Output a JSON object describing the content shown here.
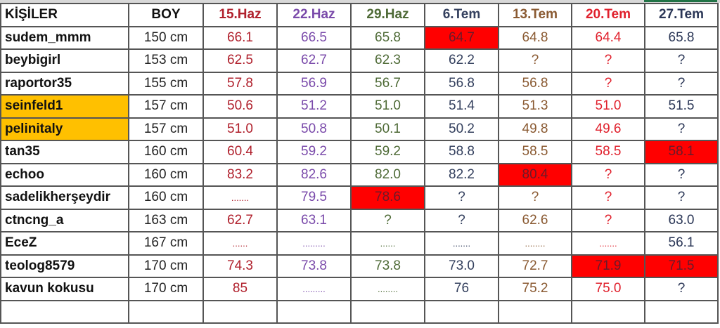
{
  "headers": [
    "KİŞİLER",
    "BOY",
    "15.Haz",
    "22.Haz",
    "29.Haz",
    "6.Tem",
    "13.Tem",
    "20.Tem",
    "27.Tem"
  ],
  "column_colors": [
    "#111111",
    "#111111",
    "#b0202c",
    "#7a4aaa",
    "#4e6a36",
    "#34405e",
    "#8a5a32",
    "#e0202c",
    "#2a3656"
  ],
  "highlight_color": "#ff0000",
  "name_highlight_color": "#ffc000",
  "rows": [
    {
      "name": "sudem_mmm",
      "boy": "150 cm",
      "values": [
        "66.1",
        "66.5",
        "65.8",
        "64.7",
        "64.8",
        "64.4",
        "65.8"
      ],
      "highlight": [
        3
      ],
      "name_highlight": false
    },
    {
      "name": "beybigirl",
      "boy": "153 cm",
      "values": [
        "62.5",
        "62.7",
        "62.3",
        "62.2",
        "?",
        "?",
        "?"
      ],
      "highlight": [],
      "name_highlight": false
    },
    {
      "name": "raportor35",
      "boy": "155 cm",
      "values": [
        "57.8",
        "56.9",
        "56.7",
        "56.8",
        "56.8",
        "?",
        "?"
      ],
      "highlight": [],
      "name_highlight": false
    },
    {
      "name": "seinfeld1",
      "boy": "157 cm",
      "values": [
        "50.6",
        "51.2",
        "51.0",
        "51.4",
        "51.3",
        "51.0",
        "51.5"
      ],
      "highlight": [],
      "name_highlight": true
    },
    {
      "name": "pelinitaly",
      "boy": "157 cm",
      "values": [
        "51.0",
        "50.8",
        "50.1",
        "50.2",
        "49.8",
        "49.6",
        "?"
      ],
      "highlight": [],
      "name_highlight": true
    },
    {
      "name": "tan35",
      "boy": "160 cm",
      "values": [
        "60.4",
        "59.2",
        "59.2",
        "58.8",
        "58.5",
        "58.5",
        "58.1"
      ],
      "highlight": [
        6
      ],
      "name_highlight": false
    },
    {
      "name": "echoo",
      "boy": "160 cm",
      "values": [
        "83.2",
        "82.6",
        "82.0",
        "82.2",
        "80.4",
        "?",
        "?"
      ],
      "highlight": [
        4
      ],
      "name_highlight": false
    },
    {
      "name": "sadelikherşeydir",
      "boy": "160 cm",
      "values": [
        ".......",
        "79.5",
        "78.6",
        "?",
        "?",
        "?",
        "?"
      ],
      "highlight": [
        2
      ],
      "name_highlight": false
    },
    {
      "name": "ctncng_a",
      "boy": "163 cm",
      "values": [
        "62.7",
        "63.1",
        "?",
        "?",
        "62.6",
        "?",
        "63.0"
      ],
      "highlight": [],
      "name_highlight": false
    },
    {
      "name": "EceZ",
      "boy": "167 cm",
      "values": [
        "......",
        ".........",
        "......",
        ".......",
        "........",
        ".......",
        "56.1"
      ],
      "highlight": [],
      "name_highlight": false
    },
    {
      "name": "teolog8579",
      "boy": "170 cm",
      "values": [
        "74.3",
        "73.8",
        "73.8",
        "73.0",
        "72.7",
        "71.9",
        "71.5"
      ],
      "highlight": [
        5,
        6
      ],
      "name_highlight": false
    },
    {
      "name": "kavun kokusu",
      "boy": "170 cm",
      "values": [
        "85",
        ".........",
        "........",
        "76",
        "75.2",
        "75.0",
        "?"
      ],
      "highlight": [],
      "name_highlight": false
    },
    {
      "name": "",
      "boy": "",
      "values": [
        "",
        "",
        "",
        "",
        "",
        "",
        ""
      ],
      "highlight": [],
      "name_highlight": false
    }
  ]
}
